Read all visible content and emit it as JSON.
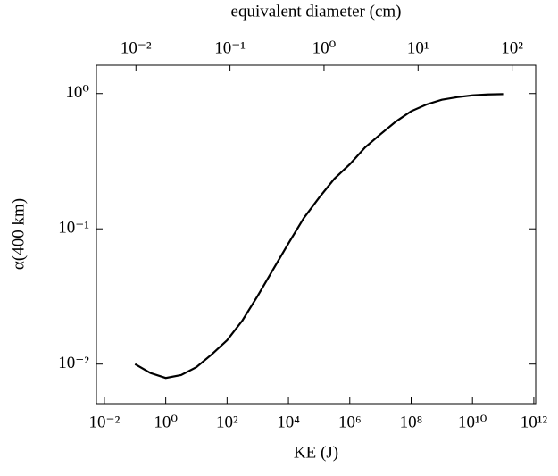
{
  "chart_data": {
    "type": "line",
    "xlabel": "KE (J)",
    "ylabel": "α(400 km)",
    "x2label": "equivalent diameter (cm)",
    "x": [
      0.1,
      0.316,
      1,
      3.16,
      10,
      31.6,
      100,
      316,
      1000,
      3162,
      10000,
      31623,
      100000,
      316228,
      1000000,
      3162278,
      10000000,
      31622777,
      100000000,
      316227766,
      1000000000,
      3162277660,
      10000000000,
      31622776602,
      100000000000
    ],
    "values": [
      0.01,
      0.0086,
      0.0079,
      0.0083,
      0.0095,
      0.0118,
      0.015,
      0.021,
      0.032,
      0.05,
      0.078,
      0.12,
      0.17,
      0.235,
      0.3,
      0.4,
      0.5,
      0.62,
      0.74,
      0.83,
      0.9,
      0.94,
      0.97,
      0.985,
      0.99
    ],
    "color": "#000000",
    "xscale": "log",
    "yscale": "log",
    "x2scale": "log",
    "xlim": [
      0.0055,
      1150000000000
    ],
    "ylim": [
      0.0051,
      1.62
    ],
    "x2lim": [
      0.0038,
      178
    ],
    "xticks": [
      {
        "value": 0.01,
        "label": "10⁻²"
      },
      {
        "value": 1,
        "label": "10⁰"
      },
      {
        "value": 100,
        "label": "10²"
      },
      {
        "value": 10000,
        "label": "10⁴"
      },
      {
        "value": 1000000,
        "label": "10⁶"
      },
      {
        "value": 100000000,
        "label": "10⁸"
      },
      {
        "value": 10000000000,
        "label": "10¹⁰"
      },
      {
        "value": 1000000000000,
        "label": "10¹²"
      }
    ],
    "yticks": [
      {
        "value": 0.01,
        "label": "10⁻²"
      },
      {
        "value": 0.1,
        "label": "10⁻¹"
      },
      {
        "value": 1,
        "label": "10⁰"
      }
    ],
    "x2ticks": [
      {
        "value": 0.01,
        "label": "10⁻²"
      },
      {
        "value": 0.1,
        "label": "10⁻¹"
      },
      {
        "value": 1,
        "label": "10⁰"
      },
      {
        "value": 10,
        "label": "10¹"
      },
      {
        "value": 100,
        "label": "10²"
      }
    ]
  }
}
